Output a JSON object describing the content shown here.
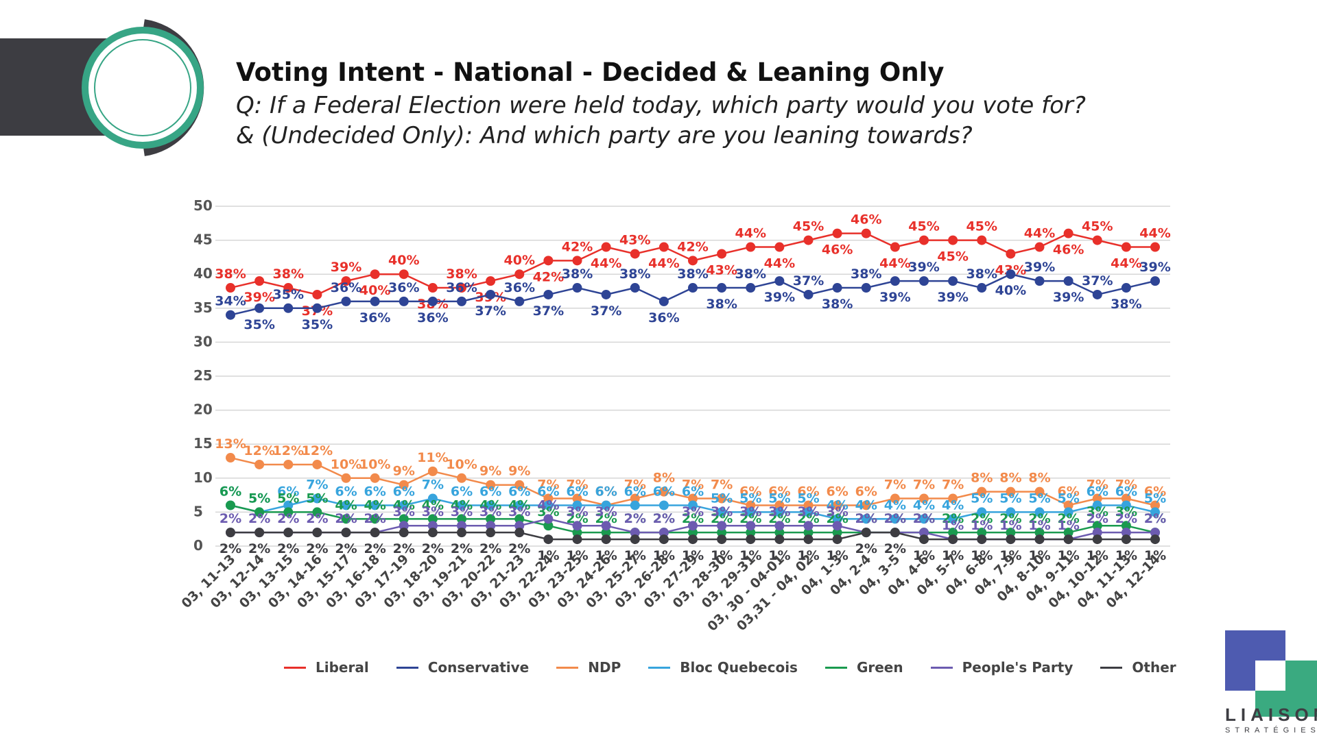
{
  "header": {
    "title": "Voting Intent - National - Decided & Leaning Only",
    "question_line1": "Q: If a Federal Election were held today, which party would you vote for?",
    "question_line2": "& (Undecided Only): And which party are you leaning towards?"
  },
  "logo": {
    "name": "LIAISON",
    "subtitle": "STRATÉGIES",
    "colors": [
      "#4e5bb0",
      "#3aaa80"
    ]
  },
  "chart_data": {
    "type": "line",
    "title": "",
    "xlabel": "",
    "ylabel": "",
    "ylim": [
      0,
      50
    ],
    "yticks": [
      0,
      5,
      10,
      15,
      20,
      25,
      30,
      35,
      40,
      45,
      50
    ],
    "grid": true,
    "legend_position": "bottom",
    "categories": [
      "03, 11-13",
      "03, 12-14",
      "03, 13-15",
      "03, 14-16",
      "03, 15-17",
      "03, 16-18",
      "03, 17-19",
      "03, 18-20",
      "03, 19-21",
      "03, 20-22",
      "03, 21-23",
      "03, 22-24",
      "03, 23-25",
      "03, 24-26",
      "03, 25-27",
      "03, 26-28",
      "03, 27-29",
      "03, 28-30",
      "03, 29-31",
      "03, 30 - 04-01",
      "03,31 - 04, 02",
      "04, 1-3",
      "04, 2-4",
      "04, 3-5",
      "04, 4-6",
      "04, 5-7",
      "04, 6-8",
      "04, 7-9",
      "04, 8-10",
      "04, 9-11",
      "04, 10-12",
      "04, 11-13",
      "04, 12-14"
    ],
    "series": [
      {
        "name": "Liberal",
        "color": "#e8302a",
        "values": [
          38,
          39,
          38,
          37,
          39,
          40,
          40,
          38,
          38,
          39,
          40,
          42,
          42,
          44,
          43,
          44,
          42,
          43,
          44,
          44,
          45,
          46,
          46,
          44,
          45,
          45,
          45,
          43,
          44,
          46,
          45,
          44,
          44
        ]
      },
      {
        "name": "Conservative",
        "color": "#2e4495",
        "values": [
          34,
          35,
          35,
          35,
          36,
          36,
          36,
          36,
          36,
          37,
          36,
          37,
          38,
          37,
          38,
          36,
          38,
          38,
          38,
          39,
          37,
          38,
          38,
          39,
          39,
          39,
          38,
          40,
          39,
          39,
          37,
          38,
          39
        ]
      },
      {
        "name": "NDP",
        "color": "#f28a4b",
        "values": [
          13,
          12,
          12,
          12,
          10,
          10,
          9,
          11,
          10,
          9,
          9,
          7,
          7,
          6,
          7,
          8,
          7,
          7,
          6,
          6,
          6,
          6,
          6,
          7,
          7,
          7,
          8,
          8,
          8,
          6,
          7,
          7,
          6
        ]
      },
      {
        "name": "Bloc Quebecois",
        "color": "#37a4dd",
        "values": [
          6,
          5,
          6,
          7,
          6,
          6,
          6,
          7,
          6,
          6,
          6,
          6,
          6,
          6,
          6,
          6,
          6,
          5,
          5,
          5,
          5,
          4,
          4,
          4,
          4,
          4,
          5,
          5,
          5,
          5,
          6,
          6,
          5
        ]
      },
      {
        "name": "Green",
        "color": "#1a9a4f",
        "values": [
          6,
          5,
          5,
          5,
          4,
          4,
          4,
          4,
          4,
          4,
          4,
          3,
          2,
          2,
          2,
          2,
          2,
          2,
          2,
          2,
          2,
          2,
          2,
          2,
          2,
          2,
          2,
          2,
          2,
          2,
          3,
          3,
          2
        ]
      },
      {
        "name": "People's Party",
        "color": "#6c5bb0",
        "values": [
          2,
          2,
          2,
          2,
          2,
          2,
          3,
          3,
          3,
          3,
          3,
          4,
          3,
          3,
          2,
          2,
          3,
          3,
          3,
          3,
          3,
          3,
          2,
          2,
          2,
          1,
          1,
          1,
          1,
          1,
          2,
          2,
          2
        ]
      },
      {
        "name": "Other",
        "color": "#3d3d42",
        "values": [
          2,
          2,
          2,
          2,
          2,
          2,
          2,
          2,
          2,
          2,
          2,
          1,
          1,
          1,
          1,
          1,
          1,
          1,
          1,
          1,
          1,
          1,
          2,
          2,
          1,
          1,
          1,
          1,
          1,
          1,
          1,
          1,
          1
        ]
      }
    ]
  }
}
